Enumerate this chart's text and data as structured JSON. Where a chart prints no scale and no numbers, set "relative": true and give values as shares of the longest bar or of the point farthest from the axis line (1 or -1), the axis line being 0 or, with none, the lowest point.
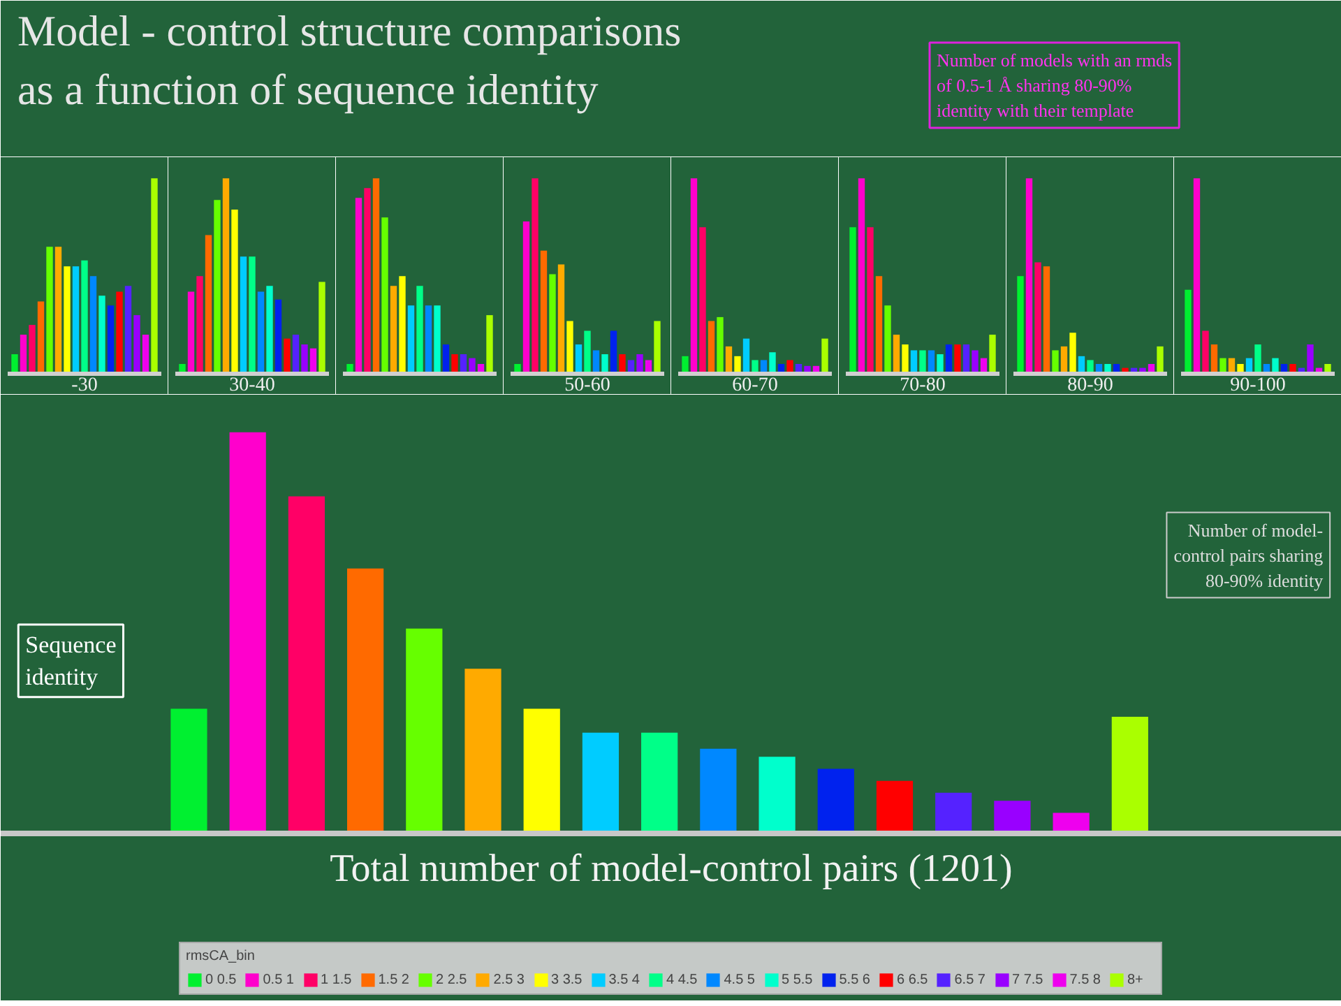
{
  "chart_data": [
    {
      "type": "bar",
      "relative": true,
      "title": "Model - control structure comparisons as a function of sequence identity",
      "xlabel": "-30",
      "categories": [
        null,
        null,
        null,
        null,
        null,
        null,
        null,
        null,
        null,
        null,
        null,
        null,
        null,
        null,
        null,
        null,
        null
      ],
      "values": [
        0.1,
        0.2,
        0.25,
        0.37,
        0.65,
        0.65,
        0.55,
        0.55,
        0.58,
        0.5,
        0.4,
        0.35,
        0.42,
        0.45,
        0.3,
        0.2,
        1.0
      ],
      "colors": [
        "#00f030",
        "#ff00cc",
        "#ff0066",
        "#ff6a00",
        "#66ff00",
        "#ffaa00",
        "#ffff00",
        "#00ccff",
        "#00ff88",
        "#0088ff",
        "#00ffcc",
        "#0022ee",
        "#ff0000",
        "#5522ff",
        "#9900ff",
        "#ee00ee",
        "#aaff00"
      ]
    },
    {
      "type": "bar",
      "relative": true,
      "xlabel": "30-40",
      "categories": [
        null,
        null,
        null,
        null,
        null,
        null,
        null,
        null,
        null,
        null,
        null,
        null,
        null,
        null,
        null,
        null,
        null
      ],
      "values": [
        0.05,
        0.42,
        0.5,
        0.71,
        0.89,
        1.0,
        0.84,
        0.6,
        0.6,
        0.42,
        0.45,
        0.38,
        0.18,
        0.2,
        0.15,
        0.13,
        0.47
      ],
      "colors": [
        "#00f030",
        "#ff00cc",
        "#ff0066",
        "#ff6a00",
        "#66ff00",
        "#ffaa00",
        "#ffff00",
        "#00ccff",
        "#00ff88",
        "#0088ff",
        "#00ffcc",
        "#0022ee",
        "#ff0000",
        "#5522ff",
        "#9900ff",
        "#ee00ee",
        "#aaff00"
      ]
    },
    {
      "type": "bar",
      "relative": true,
      "categories": [
        null,
        null,
        null,
        null,
        null,
        null,
        null,
        null,
        null,
        null,
        null,
        null,
        null,
        null,
        null,
        null,
        null
      ],
      "values": [
        0.05,
        0.9,
        0.95,
        1.0,
        0.8,
        0.45,
        0.5,
        0.35,
        0.45,
        0.35,
        0.35,
        0.15,
        0.1,
        0.1,
        0.08,
        0.05,
        0.3
      ],
      "colors": [
        "#00f030",
        "#ff00cc",
        "#ff0066",
        "#ff6a00",
        "#66ff00",
        "#ffaa00",
        "#ffff00",
        "#00ccff",
        "#00ff88",
        "#0088ff",
        "#00ffcc",
        "#0022ee",
        "#ff0000",
        "#5522ff",
        "#9900ff",
        "#ee00ee",
        "#aaff00"
      ]
    },
    {
      "type": "bar",
      "relative": true,
      "xlabel": "50-60",
      "categories": [
        null,
        null,
        null,
        null,
        null,
        null,
        null,
        null,
        null,
        null,
        null,
        null,
        null,
        null,
        null,
        null,
        null
      ],
      "values": [
        0.05,
        0.78,
        1.0,
        0.63,
        0.51,
        0.56,
        0.27,
        0.15,
        0.22,
        0.12,
        0.1,
        0.22,
        0.1,
        0.07,
        0.1,
        0.07,
        0.27
      ],
      "colors": [
        "#00f030",
        "#ff00cc",
        "#ff0066",
        "#ff6a00",
        "#66ff00",
        "#ffaa00",
        "#ffff00",
        "#00ccff",
        "#00ff88",
        "#0088ff",
        "#00ffcc",
        "#0022ee",
        "#ff0000",
        "#5522ff",
        "#9900ff",
        "#ee00ee",
        "#aaff00"
      ]
    },
    {
      "type": "bar",
      "relative": true,
      "xlabel": "60-70",
      "categories": [
        null,
        null,
        null,
        null,
        null,
        null,
        null,
        null,
        null,
        null,
        null,
        null,
        null,
        null,
        null,
        null,
        null
      ],
      "values": [
        0.09,
        1.0,
        0.75,
        0.27,
        0.29,
        0.14,
        0.09,
        0.18,
        0.07,
        0.07,
        0.11,
        0.05,
        0.07,
        0.05,
        0.04,
        0.04,
        0.18
      ],
      "colors": [
        "#00f030",
        "#ff00cc",
        "#ff0066",
        "#ff6a00",
        "#66ff00",
        "#ffaa00",
        "#ffff00",
        "#00ccff",
        "#00ff88",
        "#0088ff",
        "#00ffcc",
        "#0022ee",
        "#ff0000",
        "#5522ff",
        "#9900ff",
        "#ee00ee",
        "#aaff00"
      ]
    },
    {
      "type": "bar",
      "relative": true,
      "xlabel": "70-80",
      "categories": [
        null,
        null,
        null,
        null,
        null,
        null,
        null,
        null,
        null,
        null,
        null,
        null,
        null,
        null,
        null,
        null,
        null
      ],
      "values": [
        0.75,
        1.0,
        0.75,
        0.5,
        0.35,
        0.2,
        0.15,
        0.12,
        0.12,
        0.12,
        0.1,
        0.15,
        0.15,
        0.15,
        0.12,
        0.08,
        0.2
      ],
      "colors": [
        "#00f030",
        "#ff00cc",
        "#ff0066",
        "#ff6a00",
        "#66ff00",
        "#ffaa00",
        "#ffff00",
        "#00ccff",
        "#00ff88",
        "#0088ff",
        "#00ffcc",
        "#0022ee",
        "#ff0000",
        "#5522ff",
        "#9900ff",
        "#ee00ee",
        "#aaff00"
      ]
    },
    {
      "type": "bar",
      "relative": true,
      "xlabel": "80-90",
      "categories": [
        null,
        null,
        null,
        null,
        null,
        null,
        null,
        null,
        null,
        null,
        null,
        null,
        null,
        null,
        null,
        null,
        null
      ],
      "values": [
        0.5,
        1.0,
        0.57,
        0.55,
        0.12,
        0.14,
        0.21,
        0.09,
        0.07,
        0.05,
        0.05,
        0.05,
        0.03,
        0.03,
        0.03,
        0.05,
        0.14
      ],
      "colors": [
        "#00f030",
        "#ff00cc",
        "#ff0066",
        "#ff6a00",
        "#66ff00",
        "#ffaa00",
        "#ffff00",
        "#00ccff",
        "#00ff88",
        "#0088ff",
        "#00ffcc",
        "#0022ee",
        "#ff0000",
        "#5522ff",
        "#9900ff",
        "#ee00ee",
        "#aaff00"
      ],
      "annotations": [
        "Number of models with an rmds of 0.5-1 Å sharing 80-90% identity with their template"
      ]
    },
    {
      "type": "bar",
      "relative": true,
      "xlabel": "90-100",
      "categories": [
        null,
        null,
        null,
        null,
        null,
        null,
        null,
        null,
        null,
        null,
        null,
        null,
        null,
        null,
        null,
        null,
        null
      ],
      "values": [
        0.43,
        1.0,
        0.22,
        0.15,
        0.08,
        0.08,
        0.05,
        0.08,
        0.15,
        0.05,
        0.08,
        0.05,
        0.05,
        0.03,
        0.15,
        0.03,
        0.05
      ],
      "colors": [
        "#00f030",
        "#ff00cc",
        "#ff0066",
        "#ff6a00",
        "#66ff00",
        "#ffaa00",
        "#ffff00",
        "#00ccff",
        "#00ff88",
        "#0088ff",
        "#00ffcc",
        "#0022ee",
        "#ff0000",
        "#5522ff",
        "#9900ff",
        "#ee00ee",
        "#aaff00"
      ]
    },
    {
      "type": "bar",
      "relative": true,
      "stacked": true,
      "xlabel": "Total number of model-control pairs (1201)",
      "legend": "bottom",
      "legend_title": "rmsCA_bin",
      "annotations": [
        "Sequence identity",
        "Number of model-control pairs sharing 80-90% identity"
      ],
      "categories": [
        null,
        null,
        null,
        null,
        null,
        null,
        null,
        null,
        null,
        null,
        null,
        null,
        null,
        null,
        null,
        null,
        null
      ],
      "series": [
        {
          "name": "0 0.5",
          "color": "#00f030",
          "values": [
            0.31,
            null,
            null,
            null,
            null,
            null,
            null,
            null,
            null,
            null,
            null,
            null,
            null,
            null,
            null,
            null,
            null
          ]
        },
        {
          "name": "0.5 1",
          "color": "#ff00cc",
          "values": [
            null,
            1.0,
            null,
            null,
            null,
            null,
            null,
            null,
            null,
            null,
            null,
            null,
            null,
            null,
            null,
            null,
            null
          ]
        },
        {
          "name": "1 1.5",
          "color": "#ff0066",
          "values": [
            null,
            null,
            0.84,
            null,
            null,
            null,
            null,
            null,
            null,
            null,
            null,
            null,
            null,
            null,
            null,
            null,
            null
          ]
        },
        {
          "name": "1.5 2",
          "color": "#ff6a00",
          "values": [
            null,
            null,
            null,
            0.66,
            null,
            null,
            null,
            null,
            null,
            null,
            null,
            null,
            null,
            null,
            null,
            null,
            null
          ]
        },
        {
          "name": "2 2.5",
          "color": "#66ff00",
          "values": [
            null,
            null,
            null,
            null,
            0.51,
            null,
            null,
            null,
            null,
            null,
            null,
            null,
            null,
            null,
            null,
            null,
            null
          ]
        },
        {
          "name": "2.5 3",
          "color": "#ffaa00",
          "values": [
            null,
            null,
            null,
            null,
            null,
            0.41,
            null,
            null,
            null,
            null,
            null,
            null,
            null,
            null,
            null,
            null,
            null
          ]
        },
        {
          "name": "3 3.5",
          "color": "#ffff00",
          "values": [
            null,
            null,
            null,
            null,
            null,
            null,
            0.31,
            null,
            null,
            null,
            null,
            null,
            null,
            null,
            null,
            null,
            null
          ]
        },
        {
          "name": "3.5 4",
          "color": "#00ccff",
          "values": [
            null,
            null,
            null,
            null,
            null,
            null,
            null,
            0.25,
            null,
            null,
            null,
            null,
            null,
            null,
            null,
            null,
            null
          ]
        },
        {
          "name": "4 4.5",
          "color": "#00ff88",
          "values": [
            null,
            null,
            null,
            null,
            null,
            null,
            null,
            null,
            0.25,
            null,
            null,
            null,
            null,
            null,
            null,
            null,
            null
          ]
        },
        {
          "name": "4.5 5",
          "color": "#0088ff",
          "values": [
            null,
            null,
            null,
            null,
            null,
            null,
            null,
            null,
            null,
            0.21,
            null,
            null,
            null,
            null,
            null,
            null,
            null
          ]
        },
        {
          "name": "5 5.5",
          "color": "#00ffcc",
          "values": [
            null,
            null,
            null,
            null,
            null,
            null,
            null,
            null,
            null,
            null,
            0.19,
            null,
            null,
            null,
            null,
            null,
            null
          ]
        },
        {
          "name": "5.5 6",
          "color": "#0022ee",
          "values": [
            null,
            null,
            null,
            null,
            null,
            null,
            null,
            null,
            null,
            null,
            null,
            0.16,
            null,
            null,
            null,
            null,
            null
          ]
        },
        {
          "name": "6 6.5",
          "color": "#ff0000",
          "values": [
            null,
            null,
            null,
            null,
            null,
            null,
            null,
            null,
            null,
            null,
            null,
            null,
            0.13,
            null,
            null,
            null,
            null
          ]
        },
        {
          "name": "6.5 7",
          "color": "#5522ff",
          "values": [
            null,
            null,
            null,
            null,
            null,
            null,
            null,
            null,
            null,
            null,
            null,
            null,
            null,
            0.1,
            null,
            null,
            null
          ]
        },
        {
          "name": "7 7.5",
          "color": "#9900ff",
          "values": [
            null,
            null,
            null,
            null,
            null,
            null,
            null,
            null,
            null,
            null,
            null,
            null,
            null,
            null,
            0.08,
            null,
            null
          ]
        },
        {
          "name": "7.5 8",
          "color": "#ee00ee",
          "values": [
            null,
            null,
            null,
            null,
            null,
            null,
            null,
            null,
            null,
            null,
            null,
            null,
            null,
            null,
            null,
            0.05,
            null
          ]
        },
        {
          "name": "8+",
          "color": "#aaff00",
          "values": [
            null,
            null,
            null,
            null,
            null,
            null,
            null,
            null,
            null,
            null,
            null,
            null,
            null,
            null,
            null,
            null,
            0.29
          ]
        }
      ]
    }
  ]
}
